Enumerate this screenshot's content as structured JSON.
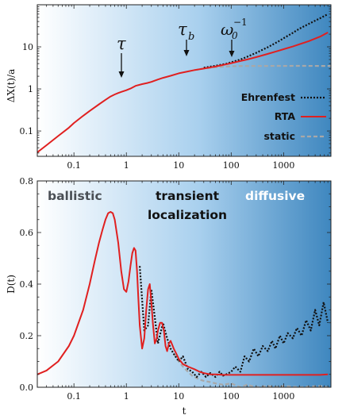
{
  "colors": {
    "ehrenfest": "#111111",
    "rta": "#e02020",
    "static": "#a8a8a8",
    "gradient_start": "#ffffff",
    "gradient_end": "#3f87bf"
  },
  "chart_data": [
    {
      "type": "line",
      "panel": "top",
      "xscale": "log",
      "yscale": "log",
      "xlabel": "",
      "ylabel": "ΔX(t)/a",
      "xlim": [
        0.02,
        8000
      ],
      "ylim": [
        0.025,
        100
      ],
      "xticks": [
        0.1,
        1,
        10,
        100,
        1000
      ],
      "xtick_labels": [
        "0.1",
        "1",
        "10",
        "100",
        "1000"
      ],
      "yticks": [
        0.1,
        1,
        10
      ],
      "ytick_labels": [
        "0.1",
        "1",
        "10"
      ],
      "legend": {
        "placement": "bottom-right",
        "entries": [
          "Ehrenfest",
          "RTA",
          "static"
        ]
      },
      "annotations": [
        {
          "label": "τ",
          "x": 0.65,
          "y": 0.78
        },
        {
          "label": "τ",
          "sub": "b",
          "x": 12,
          "y": 2.5
        },
        {
          "label": "ω",
          "sub": "0",
          "sup": "−1",
          "x": 100,
          "y": 4.0
        }
      ],
      "series": [
        {
          "name": "Ehrenfest",
          "x": [
            30,
            50,
            80,
            100,
            150,
            200,
            300,
            500,
            800,
            1000,
            1500,
            2000,
            3000,
            5000,
            7000
          ],
          "y": [
            3.2,
            3.55,
            3.95,
            4.3,
            5.0,
            5.8,
            7.2,
            9.8,
            13.5,
            16,
            21.5,
            27,
            35,
            48,
            60
          ]
        },
        {
          "name": "RTA",
          "x": [
            0.02,
            0.03,
            0.05,
            0.08,
            0.1,
            0.15,
            0.2,
            0.3,
            0.4,
            0.5,
            0.6,
            0.7,
            0.8,
            1,
            1.2,
            1.5,
            2,
            2.5,
            3,
            4,
            5,
            7,
            10,
            15,
            20,
            30,
            50,
            80,
            100,
            150,
            200,
            300,
            500,
            800,
            1000,
            1500,
            2000,
            3000,
            5000,
            7000
          ],
          "y": [
            0.031,
            0.046,
            0.076,
            0.12,
            0.155,
            0.23,
            0.3,
            0.43,
            0.55,
            0.66,
            0.74,
            0.8,
            0.85,
            0.93,
            1.02,
            1.18,
            1.3,
            1.38,
            1.47,
            1.67,
            1.83,
            2.05,
            2.35,
            2.6,
            2.8,
            3.05,
            3.4,
            3.85,
            4.1,
            4.6,
            5.0,
            5.7,
            6.8,
            8.1,
            8.8,
            10.2,
            11.5,
            13.6,
            17.5,
            22
          ]
        },
        {
          "name": "static",
          "x": [
            20,
            30,
            50,
            80,
            100,
            150,
            200,
            300,
            500,
            800,
            1000,
            2000,
            5000,
            8000
          ],
          "y": [
            2.8,
            3.05,
            3.3,
            3.4,
            3.45,
            3.5,
            3.5,
            3.52,
            3.52,
            3.53,
            3.52,
            3.53,
            3.52,
            3.52
          ]
        }
      ]
    },
    {
      "type": "line",
      "panel": "bottom",
      "xscale": "log",
      "yscale": "linear",
      "xlabel": "t",
      "ylabel": "D(t)",
      "xlim": [
        0.02,
        8000
      ],
      "ylim": [
        0,
        0.8
      ],
      "xticks": [
        0.1,
        1,
        10,
        100,
        1000
      ],
      "xtick_labels": [
        "0.1",
        "1",
        "10",
        "100",
        "1000"
      ],
      "yticks": [
        0.0,
        0.2,
        0.4,
        0.6,
        0.8
      ],
      "ytick_labels": [
        "0.0",
        "0.2",
        "0.4",
        "0.6",
        "0.8"
      ],
      "regime_labels": [
        "ballistic",
        "transient",
        "localization",
        "diffusive"
      ],
      "series": [
        {
          "name": "Ehrenfest",
          "x": [
            1.8,
            2.2,
            2.6,
            3.0,
            3.5,
            4.0,
            5.0,
            6.0,
            7.0,
            8.0,
            10,
            12,
            15,
            18,
            22,
            27,
            33,
            40,
            50,
            60,
            70,
            80,
            100,
            120,
            150,
            180,
            220,
            270,
            330,
            400,
            500,
            600,
            700,
            850,
            1000,
            1200,
            1500,
            1800,
            2200,
            2700,
            3300,
            4000,
            4800,
            5800,
            7000
          ],
          "y": [
            0.47,
            0.22,
            0.24,
            0.38,
            0.27,
            0.17,
            0.25,
            0.19,
            0.15,
            0.13,
            0.1,
            0.12,
            0.07,
            0.06,
            0.04,
            0.06,
            0.04,
            0.055,
            0.04,
            0.06,
            0.045,
            0.05,
            0.06,
            0.08,
            0.06,
            0.12,
            0.1,
            0.15,
            0.12,
            0.16,
            0.14,
            0.18,
            0.15,
            0.2,
            0.17,
            0.21,
            0.19,
            0.23,
            0.2,
            0.26,
            0.22,
            0.3,
            0.24,
            0.33,
            0.25
          ]
        },
        {
          "name": "RTA",
          "x": [
            0.02,
            0.03,
            0.05,
            0.08,
            0.1,
            0.15,
            0.2,
            0.25,
            0.3,
            0.35,
            0.4,
            0.45,
            0.5,
            0.55,
            0.6,
            0.7,
            0.8,
            0.9,
            1.0,
            1.1,
            1.2,
            1.3,
            1.4,
            1.5,
            1.6,
            1.7,
            1.8,
            2.0,
            2.2,
            2.4,
            2.6,
            2.8,
            3.0,
            3.2,
            3.5,
            3.8,
            4.0,
            4.4,
            4.8,
            5.2,
            5.6,
            6.0,
            6.5,
            7.0,
            8.0,
            9.0,
            10,
            12,
            15,
            20,
            25,
            30,
            40,
            50,
            70,
            100,
            200,
            500,
            1000,
            2000,
            5000,
            7000
          ],
          "y": [
            0.05,
            0.065,
            0.1,
            0.16,
            0.2,
            0.3,
            0.4,
            0.49,
            0.56,
            0.61,
            0.65,
            0.675,
            0.68,
            0.675,
            0.65,
            0.56,
            0.45,
            0.38,
            0.37,
            0.41,
            0.47,
            0.52,
            0.54,
            0.53,
            0.45,
            0.34,
            0.24,
            0.15,
            0.19,
            0.3,
            0.38,
            0.4,
            0.33,
            0.25,
            0.17,
            0.19,
            0.22,
            0.25,
            0.25,
            0.22,
            0.16,
            0.14,
            0.17,
            0.18,
            0.15,
            0.13,
            0.11,
            0.09,
            0.08,
            0.07,
            0.06,
            0.055,
            0.05,
            0.05,
            0.048,
            0.048,
            0.048,
            0.048,
            0.048,
            0.048,
            0.048,
            0.05
          ]
        },
        {
          "name": "static",
          "x": [
            8,
            10,
            12,
            15,
            18,
            20,
            25,
            30,
            40,
            50,
            70,
            100,
            150,
            200,
            300,
            500,
            700,
            1000,
            2000,
            5000,
            7000
          ],
          "y": [
            0.13,
            0.1,
            0.08,
            0.06,
            0.045,
            0.04,
            0.03,
            0.025,
            0.02,
            0.015,
            0.01,
            0.015,
            0.0,
            0.01,
            0.0,
            0.005,
            0.0,
            0.005,
            0.0,
            0.005,
            0.0
          ]
        }
      ]
    }
  ]
}
